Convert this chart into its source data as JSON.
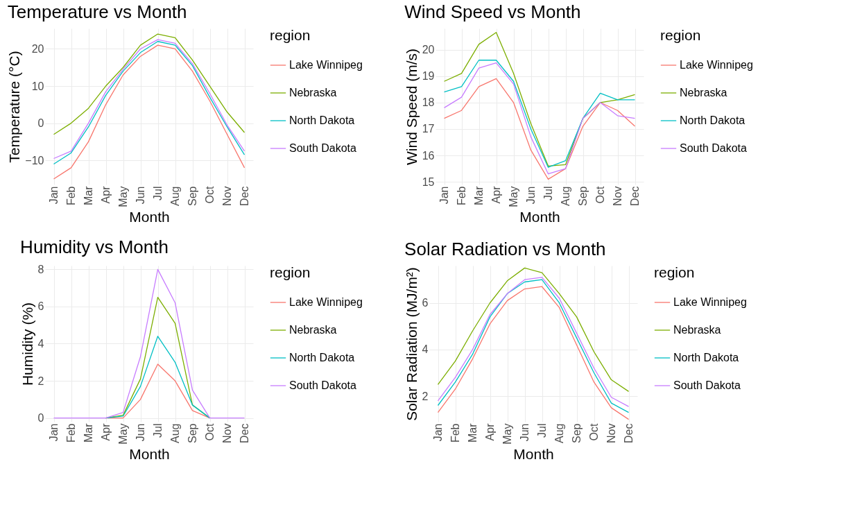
{
  "chart_data": [
    {
      "type": "line",
      "title": "Temperature vs Month",
      "xlabel": "Month",
      "ylabel": "Temperature (°C)",
      "legend_title": "region",
      "legend": "top right",
      "grid": true,
      "categories": [
        "Jan",
        "Feb",
        "Mar",
        "Apr",
        "May",
        "Jun",
        "Jul",
        "Aug",
        "Sep",
        "Oct",
        "Nov",
        "Dec"
      ],
      "ylim": [
        -16.5,
        25.5
      ],
      "yticks": [
        -10,
        0,
        10,
        20
      ],
      "series": [
        {
          "name": "Lake Winnipeg",
          "color": "#f8766d",
          "values": [
            -15,
            -12,
            -5,
            5,
            13,
            18,
            21,
            20,
            14,
            6,
            -3,
            -12
          ]
        },
        {
          "name": "Nebraska",
          "color": "#7cae00",
          "values": [
            -3,
            0,
            4,
            10,
            15,
            21,
            24,
            23,
            17,
            10,
            3,
            -2.5
          ]
        },
        {
          "name": "North Dakota",
          "color": "#00bfc4",
          "values": [
            -11,
            -8,
            -1,
            7.5,
            14,
            19,
            22,
            21,
            15.5,
            7,
            -1,
            -8.5
          ]
        },
        {
          "name": "South Dakota",
          "color": "#c77cff",
          "values": [
            -9.5,
            -7.5,
            0,
            8.5,
            14.5,
            20,
            22.5,
            21.5,
            16,
            8,
            -0.5,
            -7.5
          ]
        }
      ]
    },
    {
      "type": "line",
      "title": "Wind Speed vs Month",
      "xlabel": "Month",
      "ylabel": "Wind Speed (m/s)",
      "legend_title": "region",
      "legend": "top right",
      "grid": true,
      "categories": [
        "Jan",
        "Feb",
        "Mar",
        "Apr",
        "May",
        "Jun",
        "Jul",
        "Aug",
        "Sep",
        "Oct",
        "Nov",
        "Dec"
      ],
      "ylim": [
        14.9,
        20.8
      ],
      "yticks": [
        15,
        16,
        17,
        18,
        19,
        20
      ],
      "series": [
        {
          "name": "Lake Winnipeg",
          "color": "#f8766d",
          "values": [
            17.4,
            17.7,
            18.6,
            18.9,
            18.0,
            16.2,
            15.1,
            15.5,
            17.1,
            18.0,
            17.7,
            17.1
          ]
        },
        {
          "name": "Nebraska",
          "color": "#7cae00",
          "values": [
            18.8,
            19.1,
            20.2,
            20.65,
            19.1,
            17.2,
            15.6,
            15.65,
            17.4,
            18.0,
            18.1,
            18.3
          ]
        },
        {
          "name": "North Dakota",
          "color": "#00bfc4",
          "values": [
            18.4,
            18.6,
            19.6,
            19.6,
            18.8,
            17.0,
            15.55,
            15.8,
            17.4,
            18.35,
            18.1,
            18.1
          ]
        },
        {
          "name": "South Dakota",
          "color": "#c77cff",
          "values": [
            17.8,
            18.2,
            19.3,
            19.5,
            18.7,
            16.7,
            15.3,
            15.5,
            17.4,
            18.0,
            17.5,
            17.4
          ]
        }
      ]
    },
    {
      "type": "line",
      "title": "Humidity vs Month",
      "xlabel": "Month",
      "ylabel": "Humidity (%)",
      "legend_title": "region",
      "legend": "top right",
      "grid": true,
      "categories": [
        "Jan",
        "Feb",
        "Mar",
        "Apr",
        "May",
        "Jun",
        "Jul",
        "Aug",
        "Sep",
        "Oct",
        "Nov",
        "Dec"
      ],
      "ylim": [
        -0.2,
        8.2
      ],
      "yticks": [
        0,
        2,
        4,
        6,
        8
      ],
      "series": [
        {
          "name": "Lake Winnipeg",
          "color": "#f8766d",
          "values": [
            null,
            null,
            null,
            0,
            0,
            1,
            2.9,
            2,
            0.4,
            0,
            null,
            null
          ]
        },
        {
          "name": "Nebraska",
          "color": "#7cae00",
          "values": [
            null,
            null,
            null,
            0,
            0.15,
            2.1,
            6.5,
            5.1,
            0.7,
            0,
            null,
            null
          ]
        },
        {
          "name": "North Dakota",
          "color": "#00bfc4",
          "values": [
            null,
            null,
            null,
            0,
            0.1,
            1.7,
            4.4,
            3,
            0.7,
            0,
            null,
            null
          ]
        },
        {
          "name": "South Dakota",
          "color": "#c77cff",
          "values": [
            0,
            0,
            0,
            0,
            0.3,
            3.3,
            8,
            6.2,
            1.5,
            0,
            0,
            0
          ]
        }
      ]
    },
    {
      "type": "line",
      "title": "Solar Radiation vs Month",
      "xlabel": "Month",
      "ylabel": "Solar Radiation (MJ/m²)",
      "legend_title": "region",
      "legend": "top right",
      "grid": true,
      "categories": [
        "Jan",
        "Feb",
        "Mar",
        "Apr",
        "May",
        "Jun",
        "Jul",
        "Aug",
        "Sep",
        "Oct",
        "Nov",
        "Dec"
      ],
      "ylim": [
        0.9,
        7.6
      ],
      "yticks": [
        2,
        4,
        6
      ],
      "series": [
        {
          "name": "Lake Winnipeg",
          "color": "#f8766d",
          "values": [
            1.3,
            2.3,
            3.6,
            5.1,
            6.1,
            6.6,
            6.7,
            5.8,
            4.2,
            2.6,
            1.5,
            1.0
          ]
        },
        {
          "name": "Nebraska",
          "color": "#7cae00",
          "values": [
            2.5,
            3.5,
            4.8,
            6.0,
            6.95,
            7.5,
            7.3,
            6.4,
            5.4,
            3.9,
            2.7,
            2.2
          ]
        },
        {
          "name": "North Dakota",
          "color": "#00bfc4",
          "values": [
            1.6,
            2.6,
            3.8,
            5.4,
            6.4,
            6.9,
            7.0,
            6.0,
            4.5,
            3.0,
            1.7,
            1.3
          ]
        },
        {
          "name": "South Dakota",
          "color": "#c77cff",
          "values": [
            1.8,
            2.8,
            4.0,
            5.5,
            6.4,
            7.0,
            7.1,
            6.2,
            4.7,
            3.2,
            1.95,
            1.55
          ]
        }
      ]
    }
  ]
}
